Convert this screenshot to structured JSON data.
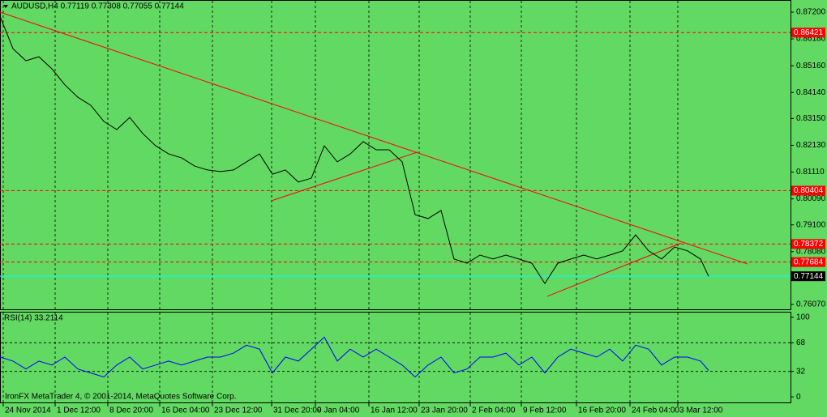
{
  "chart_data": [
    {
      "type": "line",
      "title": "AUDUSD,H4  0.77119 0.77308 0.77055 0.77144",
      "color": "#000000",
      "x": [
        0,
        8,
        16,
        24,
        32,
        40,
        48,
        56,
        64,
        72,
        80,
        88,
        96,
        104,
        112,
        120,
        128,
        136,
        144,
        152,
        160,
        168,
        176,
        184,
        192,
        200,
        208,
        216,
        224,
        232,
        240,
        248,
        256,
        264,
        272,
        280,
        288,
        296,
        304,
        312,
        320,
        328,
        336,
        344,
        352,
        360,
        368,
        376,
        384,
        392,
        400,
        408,
        416,
        424,
        432,
        437
      ],
      "values": [
        0.8705,
        0.8581,
        0.8535,
        0.855,
        0.8504,
        0.8443,
        0.8396,
        0.8365,
        0.8304,
        0.8273,
        0.8319,
        0.8258,
        0.8211,
        0.818,
        0.8165,
        0.8134,
        0.8119,
        0.8113,
        0.8119,
        0.815,
        0.818,
        0.8103,
        0.8119,
        0.8073,
        0.8088,
        0.8211,
        0.815,
        0.818,
        0.8227,
        0.8196,
        0.8196,
        0.815,
        0.7949,
        0.7934,
        0.7965,
        0.778,
        0.7764,
        0.7795,
        0.778,
        0.7795,
        0.778,
        0.7764,
        0.7687,
        0.7764,
        0.778,
        0.7795,
        0.778,
        0.7795,
        0.7811,
        0.7872,
        0.7811,
        0.778,
        0.7826,
        0.7811,
        0.778,
        0.7714
      ],
      "xlim": [
        0,
        487.5
      ],
      "ylim": [
        0.75885,
        0.87662
      ],
      "xticks": [
        {
          "value": 2,
          "label": "24 Nov 2014"
        },
        {
          "value": 34,
          "label": "1 Dec 12:00"
        },
        {
          "value": 66.5,
          "label": "8 Dec 20:00"
        },
        {
          "value": 98.5,
          "label": "16 Dec 04:00"
        },
        {
          "value": 131,
          "label": "23 Dec 12:00"
        },
        {
          "value": 167.5,
          "label": "31 Dec 20:00"
        },
        {
          "value": 194.5,
          "label": "9 Jan 04:00"
        },
        {
          "value": 227.5,
          "label": "16 Jan 12:00"
        },
        {
          "value": 258.5,
          "label": "23 Jan 20:00"
        },
        {
          "value": 290,
          "label": "2 Feb 04:00"
        },
        {
          "value": 321.5,
          "label": "9 Feb 12:00"
        },
        {
          "value": 355.5,
          "label": "16 Feb 20:00"
        },
        {
          "value": 388.5,
          "label": "24 Feb 04:00"
        },
        {
          "value": 418,
          "label": "3 Mar 12:00"
        }
      ],
      "yticks": [
        {
          "value": 0.872,
          "label": "0.87200"
        },
        {
          "value": 0.8618,
          "label": "0.86180"
        },
        {
          "value": 0.8516,
          "label": "0.85160"
        },
        {
          "value": 0.8414,
          "label": "0.84140"
        },
        {
          "value": 0.8315,
          "label": "0.83150"
        },
        {
          "value": 0.8213,
          "label": "0.82130"
        },
        {
          "value": 0.8111,
          "label": "0.81110"
        },
        {
          "value": 0.8009,
          "label": "0.80090"
        },
        {
          "value": 0.791,
          "label": "0.79100"
        },
        {
          "value": 0.7808,
          "label": "0.78080"
        },
        {
          "value": 0.7607,
          "label": "0.76070"
        }
      ],
      "grid": true,
      "hlines": [
        {
          "value": 0.86421,
          "color": "#ff0000",
          "label_bg": "#ff0000"
        },
        {
          "value": 0.80404,
          "color": "#ff0000",
          "label_bg": "#ff0000"
        },
        {
          "value": 0.78372,
          "color": "#ff0000",
          "label_bg": "#ff0000"
        },
        {
          "value": 0.77684,
          "color": "#ff0000",
          "label_bg": "#ff0000"
        },
        {
          "value": 0.77144,
          "color": "#00ffff",
          "label_bg": "#000000"
        }
      ],
      "trendlines": [
        {
          "x": [
            0,
            461
          ],
          "values": [
            0.872,
            0.7761
          ],
          "color": "#ff0000"
        },
        {
          "x": [
            167.5,
            257.5
          ],
          "values": [
            0.8002,
            0.8187
          ],
          "color": "#ff0000"
        },
        {
          "x": [
            337.5,
            420
          ],
          "values": [
            0.7638,
            0.7841
          ],
          "color": "#ff0000"
        }
      ]
    },
    {
      "type": "line",
      "title": "RSI(14) 33.2114",
      "color": "#0000ff",
      "annotation": "IronFX MetaTrader 4, © 2001-2014, MetaQuotes Software Corp.",
      "x": [
        0,
        8,
        16,
        24,
        32,
        40,
        48,
        56,
        64,
        72,
        80,
        88,
        96,
        104,
        112,
        120,
        128,
        136,
        144,
        152,
        160,
        168,
        176,
        184,
        192,
        200,
        208,
        216,
        224,
        232,
        240,
        248,
        256,
        264,
        272,
        280,
        288,
        296,
        304,
        312,
        320,
        328,
        336,
        344,
        352,
        360,
        368,
        376,
        384,
        392,
        400,
        408,
        416,
        424,
        432,
        437
      ],
      "values": [
        50,
        45,
        35,
        45,
        40,
        50,
        35,
        30,
        25,
        40,
        50,
        35,
        40,
        45,
        40,
        45,
        50,
        50,
        55,
        65,
        60,
        30,
        50,
        45,
        60,
        75,
        45,
        60,
        50,
        60,
        50,
        40,
        25,
        40,
        50,
        30,
        35,
        50,
        50,
        55,
        40,
        50,
        30,
        50,
        60,
        55,
        50,
        60,
        45,
        65,
        60,
        40,
        50,
        50,
        45,
        33.2
      ],
      "xlim": [
        0,
        487.5
      ],
      "ylim": [
        -7,
        107
      ],
      "yticks": [
        0,
        32,
        68,
        100
      ],
      "levels": [
        32,
        68
      ],
      "grid": true
    }
  ]
}
